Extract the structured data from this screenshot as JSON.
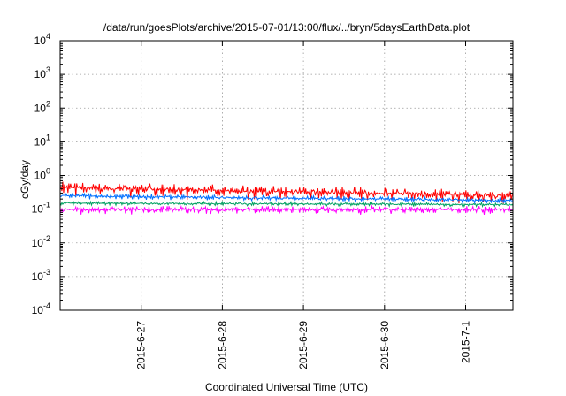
{
  "chart_data": {
    "type": "line",
    "title": "/data/run/goesPlots/archive/2015-07-01/13:00/flux/../bryn/5daysEarthData.plot",
    "xlabel": "Coordinated Universal Time (UTC)",
    "ylabel": "cGy/day",
    "yscale": "log",
    "ylim": [
      0.0001,
      10000
    ],
    "xlim": [
      "2015-06-26T00:00",
      "2015-07-01T14:00"
    ],
    "y_ticks": [
      {
        "base": "10",
        "exp": "4",
        "value": 10000
      },
      {
        "base": "10",
        "exp": "3",
        "value": 1000
      },
      {
        "base": "10",
        "exp": "2",
        "value": 100
      },
      {
        "base": "10",
        "exp": "1",
        "value": 10
      },
      {
        "base": "10",
        "exp": "0",
        "value": 1
      },
      {
        "base": "10",
        "exp": "-1",
        "value": 0.1
      },
      {
        "base": "10",
        "exp": "-2",
        "value": 0.01
      },
      {
        "base": "10",
        "exp": "-3",
        "value": 0.001
      },
      {
        "base": "10",
        "exp": "-4",
        "value": 0.0001
      }
    ],
    "x_ticks": [
      {
        "label": "2015-6-27",
        "value": "2015-06-27T00:00"
      },
      {
        "label": "2015-6-28",
        "value": "2015-06-28T00:00"
      },
      {
        "label": "2015-6-29",
        "value": "2015-06-29T00:00"
      },
      {
        "label": "2015-6-30",
        "value": "2015-06-30T00:00"
      },
      {
        "label": "2015-7-1",
        "value": "2015-07-01T00:00"
      }
    ],
    "grid": true,
    "series": [
      {
        "color": "#ff0000",
        "x_range": [
          "2015-06-26T00:00",
          "2015-07-01T14:00"
        ],
        "y_start": 0.45,
        "y_end": 0.26,
        "y_spread": [
          0.35,
          1.6
        ]
      },
      {
        "color": "#0070ff",
        "x_range": [
          "2015-06-26T00:00",
          "2015-07-01T14:00"
        ],
        "y_start": 0.25,
        "y_end": 0.18,
        "y_spread": [
          0.75,
          1.25
        ]
      },
      {
        "color": "#00a060",
        "x_range": [
          "2015-06-26T00:00",
          "2015-07-01T14:00"
        ],
        "y_start": 0.155,
        "y_end": 0.14,
        "y_spread": [
          0.8,
          1.15
        ]
      },
      {
        "color": "#ff00ff",
        "x_range": [
          "2015-06-26T00:00",
          "2015-07-01T14:00"
        ],
        "y_start": 0.1,
        "y_end": 0.1,
        "y_spread": [
          0.6,
          1.35
        ]
      }
    ]
  }
}
